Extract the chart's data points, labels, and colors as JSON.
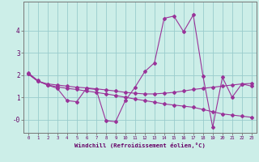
{
  "xlabel": "Windchill (Refroidissement éolien,°C)",
  "background_color": "#cceee8",
  "grid_color": "#99cccc",
  "line_color": "#993399",
  "spine_color": "#777777",
  "tick_color": "#660066",
  "x_ticks": [
    0,
    1,
    2,
    3,
    4,
    5,
    6,
    7,
    8,
    9,
    10,
    11,
    12,
    13,
    14,
    15,
    16,
    17,
    18,
    19,
    20,
    21,
    22,
    23
  ],
  "y_ticks": [
    0,
    1,
    2,
    3,
    4
  ],
  "y_tick_labels": [
    "-0",
    "1",
    "2",
    "3",
    "4"
  ],
  "ylim": [
    -0.6,
    5.3
  ],
  "xlim": [
    -0.5,
    23.5
  ],
  "series1": [
    2.1,
    1.75,
    1.55,
    1.4,
    0.85,
    0.8,
    1.4,
    1.35,
    -0.05,
    -0.1,
    0.85,
    1.45,
    2.15,
    2.55,
    4.55,
    4.65,
    3.95,
    4.7,
    1.95,
    -0.35,
    1.9,
    1.0,
    1.6,
    1.5
  ],
  "series2": [
    2.05,
    1.72,
    1.55,
    1.47,
    1.4,
    1.35,
    1.28,
    1.22,
    1.15,
    1.08,
    1.0,
    0.92,
    0.85,
    0.78,
    0.7,
    0.65,
    0.6,
    0.55,
    0.45,
    0.35,
    0.25,
    0.2,
    0.15,
    0.1
  ],
  "series3": [
    2.05,
    1.72,
    1.6,
    1.55,
    1.5,
    1.45,
    1.42,
    1.38,
    1.33,
    1.28,
    1.22,
    1.18,
    1.15,
    1.15,
    1.18,
    1.22,
    1.28,
    1.35,
    1.4,
    1.45,
    1.5,
    1.55,
    1.6,
    1.62
  ]
}
